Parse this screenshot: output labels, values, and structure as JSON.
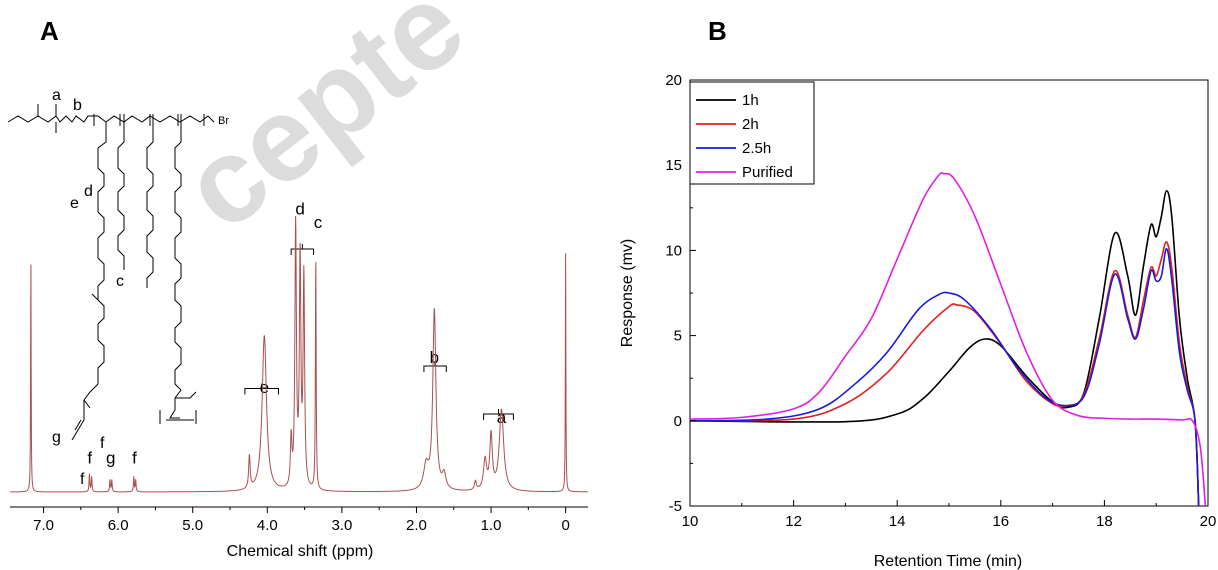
{
  "panels": {
    "a_label": "A",
    "b_label": "B"
  },
  "watermark_text": "cepte",
  "structure": {
    "labels": [
      "a",
      "b",
      "e",
      "d",
      "c",
      "g",
      "f",
      "f"
    ],
    "bromine": "Br"
  },
  "chart_data": [
    {
      "type": "line",
      "title": "",
      "xlabel": "Chemical shift (ppm)",
      "ylabel": "",
      "xlim": [
        7.45,
        -0.3
      ],
      "x_reversed": true,
      "xticks": [
        "7.0",
        "6.0",
        "5.0",
        "4.0",
        "3.0",
        "2.0",
        "1.0",
        "0"
      ],
      "xtick_values": [
        7.0,
        6.0,
        5.0,
        4.0,
        3.0,
        2.0,
        1.0,
        0
      ],
      "color": "#a85050",
      "y_scale": "relative intensity",
      "peaks": [
        {
          "x": 7.17,
          "h": 0.8,
          "w": 0.004
        },
        {
          "x": 6.385,
          "h": 0.06,
          "w": 0.006
        },
        {
          "x": 6.355,
          "h": 0.05,
          "w": 0.006
        },
        {
          "x": 6.11,
          "h": 0.04,
          "w": 0.006
        },
        {
          "x": 6.085,
          "h": 0.04,
          "w": 0.006
        },
        {
          "x": 5.79,
          "h": 0.05,
          "w": 0.006
        },
        {
          "x": 5.765,
          "h": 0.04,
          "w": 0.006
        },
        {
          "x": 4.24,
          "h": 0.11,
          "w": 0.012
        },
        {
          "x": 4.04,
          "h": 0.52,
          "w": 0.035
        },
        {
          "x": 3.68,
          "h": 0.16,
          "w": 0.012
        },
        {
          "x": 3.62,
          "h": 0.88,
          "w": 0.012
        },
        {
          "x": 3.56,
          "h": 0.76,
          "w": 0.012
        },
        {
          "x": 3.51,
          "h": 0.7,
          "w": 0.012
        },
        {
          "x": 3.35,
          "h": 0.78,
          "w": 0.006
        },
        {
          "x": 1.87,
          "h": 0.08,
          "w": 0.04
        },
        {
          "x": 1.76,
          "h": 0.6,
          "w": 0.025
        },
        {
          "x": 1.63,
          "h": 0.05,
          "w": 0.03
        },
        {
          "x": 1.21,
          "h": 0.03,
          "w": 0.015
        },
        {
          "x": 1.08,
          "h": 0.1,
          "w": 0.025
        },
        {
          "x": 1.0,
          "h": 0.18,
          "w": 0.02
        },
        {
          "x": 0.86,
          "h": 0.27,
          "w": 0.035
        },
        {
          "x": 0.0,
          "h": 0.8,
          "w": 0.004
        }
      ],
      "annotations": [
        {
          "text": "f",
          "x": 6.38,
          "y": 0.095
        },
        {
          "text": "g",
          "x": 6.1,
          "y": 0.095
        },
        {
          "text": "f",
          "x": 5.78,
          "y": 0.095
        },
        {
          "text": "e",
          "x": 4.04,
          "y": 0.33
        },
        {
          "text": "d",
          "x": 3.56,
          "y": 0.925
        },
        {
          "text": "c",
          "x": 3.32,
          "y": 0.88
        },
        {
          "text": "b",
          "x": 1.76,
          "y": 0.43
        },
        {
          "text": "a",
          "x": 0.86,
          "y": 0.23
        }
      ],
      "brackets": [
        {
          "x1": 4.3,
          "x2": 3.85,
          "y": 0.345
        },
        {
          "x1": 3.68,
          "x2": 3.38,
          "y": 0.81
        },
        {
          "x1": 1.9,
          "x2": 1.6,
          "y": 0.42
        },
        {
          "x1": 1.1,
          "x2": 0.7,
          "y": 0.26
        }
      ]
    },
    {
      "type": "line",
      "title": "",
      "xlabel": "Retention Time (min)",
      "ylabel": "Response (mv)",
      "xlim": [
        10,
        20
      ],
      "ylim": [
        -5,
        20
      ],
      "xticks": [
        10,
        12,
        14,
        16,
        18,
        20
      ],
      "yticks": [
        -5,
        0,
        5,
        10,
        15,
        20
      ],
      "legend_position": "top-left",
      "series": [
        {
          "name": "1h",
          "color": "#000000",
          "x": [
            10,
            13,
            14,
            14.5,
            15,
            15.4,
            15.7,
            16,
            16.5,
            17,
            17.3,
            17.6,
            17.9,
            18.2,
            18.45,
            18.6,
            18.75,
            18.9,
            19.0,
            19.1,
            19.2,
            19.3,
            19.45,
            19.6,
            19.75,
            19.82
          ],
          "y": [
            0,
            -0.05,
            0.4,
            1.3,
            2.9,
            4.3,
            4.8,
            4.4,
            2.6,
            1.1,
            0.8,
            1.6,
            6.0,
            11.0,
            8.5,
            6.2,
            9.0,
            11.5,
            10.8,
            12.0,
            13.5,
            12.0,
            6.0,
            2.5,
            0.0,
            -5.0
          ]
        },
        {
          "name": "2h",
          "color": "#e02020",
          "x": [
            10,
            12,
            13,
            13.8,
            14.5,
            15,
            15.15,
            15.5,
            16,
            16.5,
            17,
            17.3,
            17.6,
            17.9,
            18.2,
            18.45,
            18.6,
            18.75,
            18.9,
            19.0,
            19.1,
            19.2,
            19.3,
            19.45,
            19.6,
            19.75,
            19.82
          ],
          "y": [
            0,
            0.1,
            1.0,
            2.8,
            5.3,
            6.7,
            6.8,
            6.4,
            4.5,
            2.3,
            1.0,
            0.9,
            1.5,
            4.8,
            8.8,
            6.2,
            4.9,
            7.0,
            9.0,
            8.5,
            9.5,
            10.5,
            9.0,
            4.5,
            2.0,
            0.0,
            -5.0
          ]
        },
        {
          "name": "2.5h",
          "color": "#1a1adc",
          "x": [
            10,
            11.5,
            12.5,
            13.2,
            13.8,
            14.4,
            14.8,
            15.0,
            15.3,
            15.8,
            16.3,
            16.8,
            17.2,
            17.6,
            17.9,
            18.2,
            18.45,
            18.6,
            18.75,
            18.9,
            19.0,
            19.1,
            19.2,
            19.3,
            19.45,
            19.6,
            19.75,
            19.82
          ],
          "y": [
            0,
            0.1,
            0.7,
            2.2,
            4.0,
            6.5,
            7.4,
            7.5,
            7.1,
            5.4,
            3.2,
            1.5,
            0.9,
            1.4,
            4.5,
            8.6,
            6.0,
            4.8,
            6.5,
            8.8,
            8.2,
            8.5,
            10.1,
            8.3,
            4.0,
            1.8,
            0.0,
            -5.0
          ]
        },
        {
          "name": "Purified",
          "color": "#e020e0",
          "x": [
            10,
            11,
            12,
            12.5,
            13,
            13.5,
            14,
            14.5,
            14.8,
            14.9,
            15.1,
            15.5,
            16,
            16.5,
            17,
            17.5,
            18,
            18.5,
            19,
            19.5,
            19.7,
            19.85,
            19.95
          ],
          "y": [
            0.1,
            0.2,
            0.7,
            1.7,
            3.8,
            6.0,
            9.5,
            13.0,
            14.4,
            14.5,
            14.2,
            12.0,
            8.0,
            4.0,
            1.2,
            0.3,
            0.15,
            0.1,
            0.1,
            0.05,
            0.0,
            -1.5,
            -5.0
          ]
        }
      ]
    }
  ]
}
